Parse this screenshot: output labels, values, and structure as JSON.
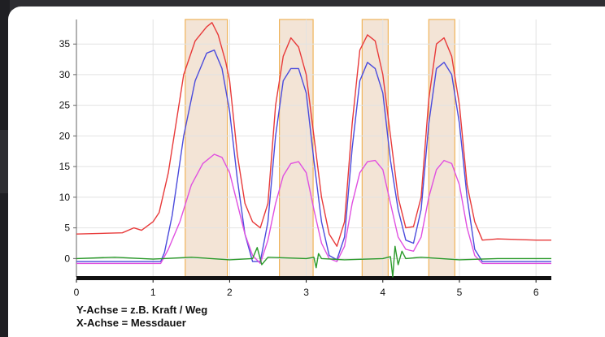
{
  "chart_data": {
    "type": "line",
    "title": "",
    "xlabel": "",
    "ylabel": "",
    "xlim": [
      0,
      6.2
    ],
    "ylim": [
      -3,
      39
    ],
    "x_ticks": [
      "0",
      "1",
      "2",
      "3",
      "4",
      "5",
      "6"
    ],
    "y_ticks": [
      "0",
      "5",
      "10",
      "15",
      "20",
      "25",
      "30",
      "35"
    ],
    "grid": true,
    "highlight_bands": [
      [
        1.42,
        1.97
      ],
      [
        2.65,
        3.09
      ],
      [
        3.73,
        4.07
      ],
      [
        4.6,
        4.94
      ]
    ],
    "series": [
      {
        "color": "#e83a3a",
        "x": [
          0,
          0.6,
          0.75,
          0.85,
          1.0,
          1.08,
          1.2,
          1.4,
          1.55,
          1.7,
          1.77,
          1.85,
          1.95,
          2.0,
          2.1,
          2.2,
          2.3,
          2.4,
          2.5,
          2.6,
          2.7,
          2.8,
          2.9,
          3.0,
          3.1,
          3.2,
          3.3,
          3.4,
          3.5,
          3.6,
          3.7,
          3.8,
          3.9,
          4.0,
          4.1,
          4.2,
          4.3,
          4.4,
          4.5,
          4.6,
          4.7,
          4.8,
          4.9,
          5.0,
          5.1,
          5.2,
          5.3,
          5.5,
          6.0,
          6.2
        ],
        "values": [
          4.0,
          4.2,
          5.0,
          4.6,
          6.0,
          7.5,
          14.0,
          30.0,
          35.5,
          37.8,
          38.5,
          36.5,
          32.0,
          29.0,
          17.0,
          9.0,
          6.0,
          5.0,
          9.0,
          25.0,
          33.0,
          36.0,
          34.5,
          30.0,
          20.0,
          10.0,
          4.0,
          2.0,
          6.0,
          22.0,
          34.0,
          36.5,
          35.5,
          30.0,
          20.0,
          10.0,
          5.0,
          5.2,
          10.0,
          26.0,
          35.0,
          36.0,
          33.0,
          25.0,
          12.0,
          6.0,
          3.0,
          3.2,
          3.0,
          3.0
        ]
      },
      {
        "color": "#4b4bdc",
        "x": [
          0,
          1.1,
          1.15,
          1.25,
          1.4,
          1.55,
          1.7,
          1.8,
          1.9,
          2.0,
          2.1,
          2.2,
          2.3,
          2.4,
          2.5,
          2.6,
          2.7,
          2.8,
          2.9,
          3.0,
          3.1,
          3.2,
          3.3,
          3.4,
          3.5,
          3.6,
          3.7,
          3.8,
          3.9,
          4.0,
          4.1,
          4.2,
          4.3,
          4.4,
          4.5,
          4.6,
          4.7,
          4.8,
          4.9,
          5.0,
          5.1,
          5.2,
          5.3,
          6.2
        ],
        "values": [
          -0.5,
          -0.5,
          1.0,
          7.0,
          20.0,
          29.0,
          33.5,
          34.0,
          31.0,
          24.0,
          13.0,
          4.0,
          -0.5,
          -0.5,
          6.0,
          20.0,
          29.0,
          31.0,
          31.0,
          27.0,
          16.0,
          6.0,
          0.5,
          -0.2,
          3.5,
          18.0,
          29.0,
          32.0,
          31.0,
          27.0,
          16.0,
          8.0,
          3.0,
          2.5,
          8.0,
          22.0,
          31.0,
          32.0,
          30.0,
          22.0,
          10.0,
          1.5,
          -0.5,
          -0.5
        ]
      },
      {
        "color": "#e050e0",
        "x": [
          0,
          1.1,
          1.2,
          1.35,
          1.5,
          1.65,
          1.8,
          1.9,
          2.0,
          2.1,
          2.2,
          2.3,
          2.4,
          2.5,
          2.6,
          2.7,
          2.8,
          2.9,
          3.0,
          3.1,
          3.2,
          3.3,
          3.4,
          3.5,
          3.6,
          3.7,
          3.8,
          3.9,
          4.0,
          4.1,
          4.2,
          4.3,
          4.4,
          4.5,
          4.6,
          4.7,
          4.8,
          4.9,
          5.0,
          5.1,
          5.2,
          5.3,
          6.2
        ],
        "values": [
          -0.8,
          -0.8,
          1.5,
          6.0,
          12.0,
          15.5,
          17.0,
          16.5,
          14.0,
          9.0,
          4.0,
          0.5,
          -0.8,
          3.0,
          9.0,
          13.5,
          15.5,
          15.8,
          14.0,
          8.0,
          2.5,
          0.0,
          -0.5,
          2.0,
          9.0,
          14.0,
          15.8,
          16.0,
          14.5,
          9.0,
          3.5,
          1.5,
          1.2,
          3.5,
          10.0,
          14.5,
          16.0,
          15.5,
          12.0,
          5.0,
          0.5,
          -0.8,
          -0.8
        ]
      },
      {
        "color": "#2a9a2a",
        "x": [
          0,
          0.5,
          1.0,
          1.5,
          2.0,
          2.3,
          2.36,
          2.42,
          2.5,
          3.0,
          3.1,
          3.13,
          3.16,
          3.2,
          3.5,
          4.0,
          4.1,
          4.13,
          4.16,
          4.2,
          4.25,
          4.3,
          4.5,
          5.0,
          5.5,
          6.2
        ],
        "values": [
          0.0,
          0.2,
          -0.1,
          0.2,
          -0.2,
          0.0,
          1.8,
          -1.0,
          0.2,
          0.0,
          0.2,
          -1.5,
          0.8,
          0.0,
          -0.2,
          0.0,
          0.3,
          -3.0,
          2.0,
          -1.0,
          1.2,
          0.0,
          0.2,
          -0.2,
          0.0,
          0.0
        ]
      }
    ]
  },
  "captions": {
    "y_axis_note": "Y-Achse = z.B. Kraft / Weg",
    "x_axis_note": "X-Achse = Messdauer"
  }
}
